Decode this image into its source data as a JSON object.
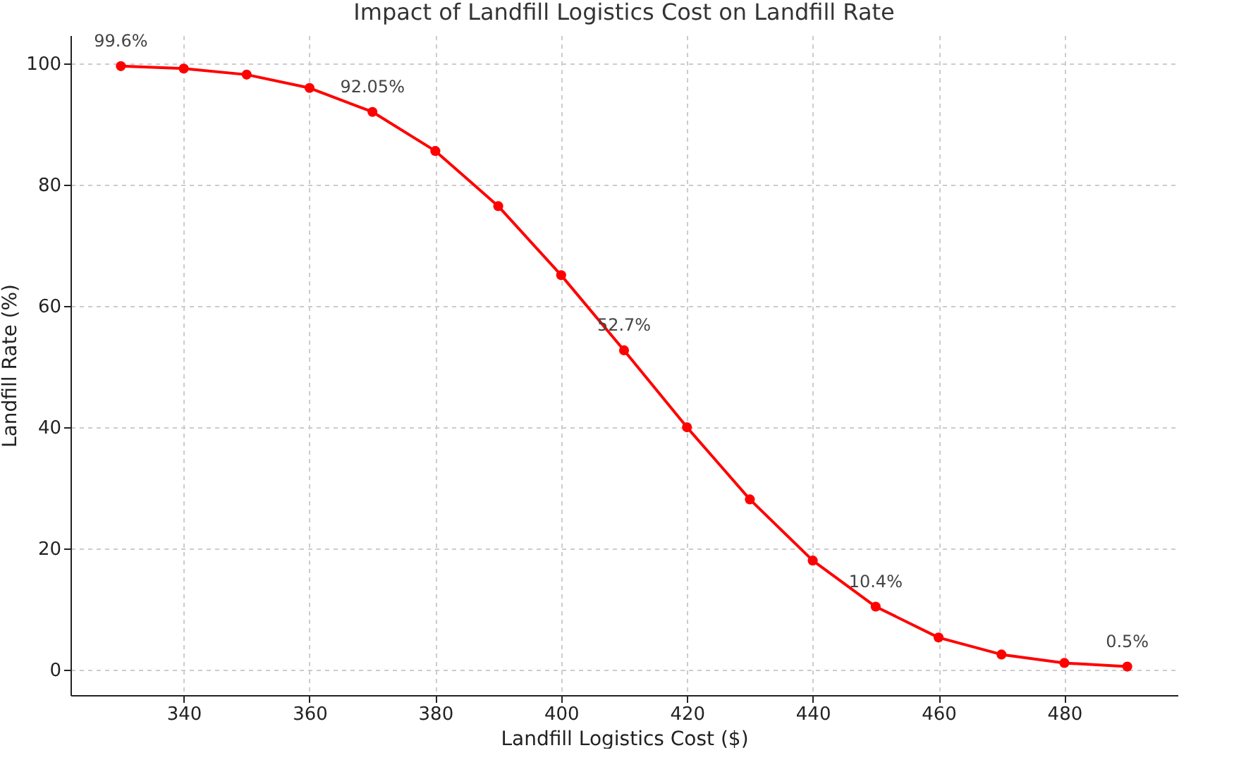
{
  "chart_data": {
    "type": "line",
    "title": "Impact of Landfill Logistics Cost on Landfill Rate",
    "xlabel": "Landfill Logistics Cost ($)",
    "ylabel": "Landfill Rate (%)",
    "x": [
      330,
      340,
      350,
      360,
      370,
      380,
      390,
      400,
      410,
      420,
      430,
      440,
      450,
      460,
      470,
      480,
      490
    ],
    "series": [
      {
        "color": "#ff0000",
        "values": [
          99.6,
          99.2,
          98.2,
          96.0,
          92.05,
          85.6,
          76.5,
          65.1,
          52.7,
          40.0,
          28.1,
          18.0,
          10.4,
          5.3,
          2.5,
          1.1,
          0.5
        ],
        "value_labels": [
          "99.6%",
          null,
          null,
          null,
          "92.05%",
          null,
          null,
          null,
          "52.7%",
          null,
          null,
          null,
          "10.4%",
          null,
          null,
          null,
          "0.5%"
        ]
      }
    ],
    "xlim": [
      322,
      498
    ],
    "ylim": [
      -4.2,
      104.7
    ],
    "xticks": [
      340,
      360,
      380,
      400,
      420,
      440,
      460,
      480
    ],
    "yticks": [
      0,
      20,
      40,
      60,
      80,
      100
    ],
    "grid": true,
    "marker": "circle",
    "line_style": "solid"
  }
}
